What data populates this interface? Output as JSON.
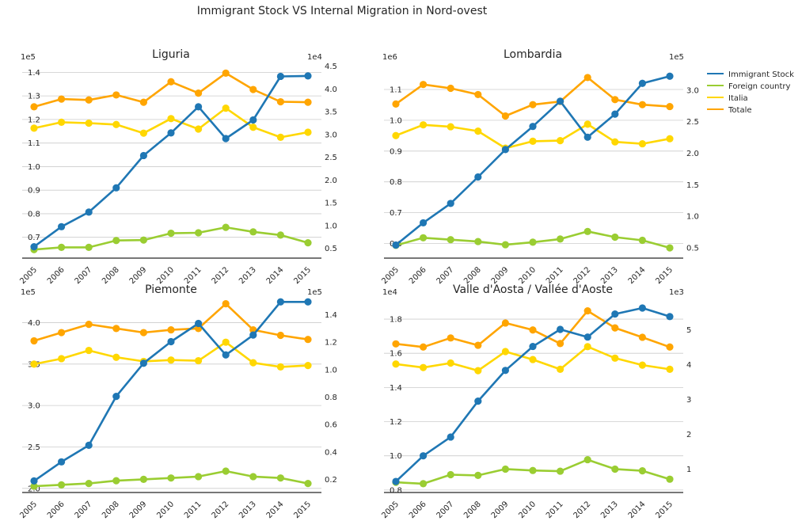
{
  "figure": {
    "title": "Immigrant Stock VS Internal Migration in Nord-ovest"
  },
  "legend": {
    "placement": "right",
    "entries": [
      {
        "name": "Immigrant Stock",
        "color": "#1f77b4"
      },
      {
        "name": "Foreign country",
        "color": "#9acd32"
      },
      {
        "name": "Italia",
        "color": "#ffd700"
      },
      {
        "name": "Totale",
        "color": "#ffa500"
      }
    ]
  },
  "chart_data": [
    {
      "type": "line",
      "title": "Liguria",
      "x": [
        "2005",
        "2006",
        "2007",
        "2008",
        "2009",
        "2010",
        "2011",
        "2012",
        "2013",
        "2014",
        "2015"
      ],
      "left_axis": {
        "exponent_label": "1e5",
        "ylim": [
          0.615,
          1.445
        ],
        "ticks": [
          "0.7",
          "0.8",
          "0.9",
          "1.0",
          "1.1",
          "1.2",
          "1.3",
          "1.4"
        ],
        "tick_values": [
          0.7,
          0.8,
          0.9,
          1.0,
          1.1,
          1.2,
          1.3,
          1.4
        ]
      },
      "right_axis": {
        "exponent_label": "1e4",
        "ylim": [
          0.3,
          4.6
        ],
        "ticks": [
          "0.5",
          "1.0",
          "1.5",
          "2.0",
          "2.5",
          "3.0",
          "3.5",
          "4.0",
          "4.5"
        ],
        "tick_values": [
          0.5,
          1.0,
          1.5,
          2.0,
          2.5,
          3.0,
          3.5,
          4.0,
          4.5
        ]
      },
      "series": [
        {
          "name": "Immigrant Stock",
          "axis": "left",
          "values": [
            0.66,
            0.745,
            0.807,
            0.91,
            1.047,
            1.143,
            1.254,
            1.119,
            1.198,
            1.383,
            1.385
          ]
        },
        {
          "name": "Foreign country",
          "axis": "right",
          "values": [
            0.47,
            0.52,
            0.52,
            0.67,
            0.68,
            0.83,
            0.84,
            0.96,
            0.86,
            0.79,
            0.62
          ]
        },
        {
          "name": "Italia",
          "axis": "right",
          "values": [
            3.14,
            3.27,
            3.25,
            3.22,
            3.03,
            3.35,
            3.12,
            3.58,
            3.16,
            2.94,
            3.05
          ]
        },
        {
          "name": "Totale",
          "axis": "right",
          "values": [
            3.61,
            3.78,
            3.76,
            3.87,
            3.71,
            4.16,
            3.91,
            4.35,
            3.99,
            3.72,
            3.71
          ]
        }
      ]
    },
    {
      "type": "line",
      "title": "Lombardia",
      "x": [
        "2005",
        "2006",
        "2007",
        "2008",
        "2009",
        "2010",
        "2011",
        "2012",
        "2013",
        "2014",
        "2015"
      ],
      "left_axis": {
        "exponent_label": "1e6",
        "ylim": [
          0.555,
          1.19
        ],
        "ticks": [
          "0.6",
          "0.7",
          "0.8",
          "0.9",
          "1.0",
          "1.1"
        ],
        "tick_values": [
          0.6,
          0.7,
          0.8,
          0.9,
          1.0,
          1.1
        ]
      },
      "right_axis": {
        "exponent_label": "1e5",
        "ylim": [
          0.35,
          3.45
        ],
        "ticks": [
          "0.5",
          "1.0",
          "1.5",
          "2.0",
          "2.5",
          "3.0"
        ],
        "tick_values": [
          0.5,
          1.0,
          1.5,
          2.0,
          2.5,
          3.0
        ]
      },
      "series": [
        {
          "name": "Immigrant Stock",
          "axis": "left",
          "values": [
            0.595,
            0.667,
            0.73,
            0.816,
            0.905,
            0.98,
            1.062,
            0.945,
            1.02,
            1.12,
            1.143
          ]
        },
        {
          "name": "Foreign country",
          "axis": "right",
          "values": [
            0.54,
            0.66,
            0.63,
            0.6,
            0.55,
            0.59,
            0.64,
            0.76,
            0.67,
            0.62,
            0.5
          ]
        },
        {
          "name": "Italia",
          "axis": "right",
          "values": [
            2.28,
            2.45,
            2.42,
            2.35,
            2.08,
            2.19,
            2.2,
            2.46,
            2.18,
            2.15,
            2.23
          ]
        },
        {
          "name": "Totale",
          "axis": "right",
          "values": [
            2.78,
            3.09,
            3.03,
            2.93,
            2.59,
            2.77,
            2.82,
            3.2,
            2.85,
            2.77,
            2.74
          ]
        }
      ]
    },
    {
      "type": "line",
      "title": "Piemonte",
      "x": [
        "2005",
        "2006",
        "2007",
        "2008",
        "2009",
        "2010",
        "2011",
        "2012",
        "2013",
        "2014",
        "2015"
      ],
      "left_axis": {
        "exponent_label": "1e5",
        "ylim": [
          1.96,
          4.31
        ],
        "ticks": [
          "2.0",
          "2.5",
          "3.0",
          "3.5",
          "4.0"
        ],
        "tick_values": [
          2.0,
          2.5,
          3.0,
          3.5,
          4.0
        ]
      },
      "right_axis": {
        "exponent_label": "1e5",
        "ylim": [
          0.11,
          1.53
        ],
        "ticks": [
          "0.2",
          "0.4",
          "0.6",
          "0.8",
          "1.0",
          "1.2",
          "1.4"
        ],
        "tick_values": [
          0.2,
          0.4,
          0.6,
          0.8,
          1.0,
          1.2,
          1.4
        ]
      },
      "series": [
        {
          "name": "Immigrant Stock",
          "axis": "left",
          "values": [
            2.09,
            2.32,
            2.52,
            3.11,
            3.51,
            3.77,
            3.99,
            3.61,
            3.85,
            4.25,
            4.25
          ]
        },
        {
          "name": "Foreign country",
          "axis": "right",
          "values": [
            0.15,
            0.16,
            0.17,
            0.19,
            0.2,
            0.21,
            0.22,
            0.26,
            0.22,
            0.21,
            0.17
          ]
        },
        {
          "name": "Italia",
          "axis": "right",
          "values": [
            1.04,
            1.08,
            1.14,
            1.09,
            1.06,
            1.07,
            1.065,
            1.2,
            1.05,
            1.02,
            1.03
          ]
        },
        {
          "name": "Totale",
          "axis": "right",
          "values": [
            1.21,
            1.27,
            1.33,
            1.3,
            1.27,
            1.29,
            1.3,
            1.48,
            1.29,
            1.25,
            1.22
          ]
        }
      ]
    },
    {
      "type": "line",
      "title": "Valle d'Aosta / Vallée d'Aoste",
      "x": [
        "2005",
        "2006",
        "2007",
        "2008",
        "2009",
        "2010",
        "2011",
        "2012",
        "2013",
        "2014",
        "2015"
      ],
      "left_axis": {
        "exponent_label": "1e4",
        "ylim": [
          0.79,
          1.93
        ],
        "ticks": [
          "0.8",
          "1.0",
          "1.2",
          "1.4",
          "1.6",
          "1.8"
        ],
        "tick_values": [
          0.8,
          1.0,
          1.2,
          1.4,
          1.6,
          1.8
        ]
      },
      "right_axis": {
        "exponent_label": "1e3",
        "ylim": [
          0.35,
          5.95
        ],
        "ticks": [
          "1",
          "2",
          "3",
          "4",
          "5"
        ],
        "tick_values": [
          1,
          2,
          3,
          4,
          5
        ]
      },
      "series": [
        {
          "name": "Immigrant Stock",
          "axis": "left",
          "values": [
            0.85,
            1.0,
            1.11,
            1.32,
            1.5,
            1.64,
            1.74,
            1.695,
            1.83,
            1.865,
            1.815
          ]
        },
        {
          "name": "Foreign country",
          "axis": "right",
          "values": [
            0.62,
            0.58,
            0.84,
            0.82,
            1.0,
            0.96,
            0.94,
            1.27,
            1.0,
            0.95,
            0.71
          ]
        },
        {
          "name": "Italia",
          "axis": "right",
          "values": [
            4.02,
            3.92,
            4.05,
            3.83,
            4.38,
            4.15,
            3.87,
            4.52,
            4.19,
            3.99,
            3.87
          ]
        },
        {
          "name": "Totale",
          "axis": "right",
          "values": [
            4.6,
            4.51,
            4.77,
            4.56,
            5.2,
            5.0,
            4.61,
            5.55,
            5.06,
            4.79,
            4.51
          ]
        }
      ]
    }
  ]
}
